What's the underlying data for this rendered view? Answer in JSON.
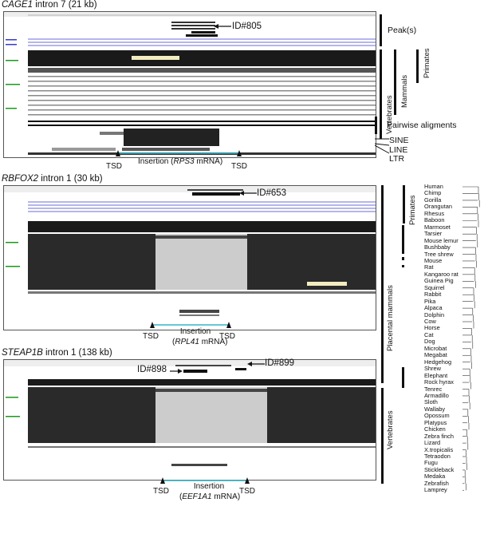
{
  "panels": [
    {
      "gene": "CAGE1",
      "suffix": "intron 7 (21 kb)",
      "id_label": "ID#805",
      "insertion_prefix": "Insertion (",
      "insertion_gene": "RPS3",
      "insertion_suffix": " mRNA)"
    },
    {
      "gene": "RBFOX2",
      "suffix": "intron 1 (30 kb)",
      "id_label": "ID#653",
      "insertion_prefix": "Insertion",
      "insertion_gene": "RPL41",
      "insertion_suffix": " mRNA)"
    },
    {
      "gene": "STEAP1B",
      "suffix": "intron 1 (138 kb)",
      "id_label": "ID#898",
      "id_label_2": "ID#899",
      "insertion_prefix": "Insertion",
      "insertion_gene": "EEF1A1",
      "insertion_suffix": " mRNA)"
    }
  ],
  "tsd_label": "TSD",
  "right_labels": {
    "peaks": "Peak(s)",
    "primates": "Primates",
    "mammals": "Mammals",
    "vertebrates": "Vertebrates",
    "pairwise": "Pairwise aligments",
    "sine": "SINE",
    "line": "LINE",
    "ltr": "LTR",
    "placental_mammals": "Placental mammals"
  },
  "species": [
    "Human",
    "Chimp",
    "Gorilla",
    "Orangutan",
    "Rhesus",
    "Baboon",
    "Marmoset",
    "Tarsier",
    "Mouse lemur",
    "Bushbaby",
    "Tree shrew",
    "Mouse",
    "Rat",
    "Kangaroo rat",
    "Guinea Pig",
    "Squirrel",
    "Rabbit",
    "Pika",
    "Alpaca",
    "Dolphin",
    "Cow",
    "Horse",
    "Cat",
    "Dog",
    "Microbat",
    "Megabat",
    "Hedgehog",
    "Shrew",
    "Elephant",
    "Rock hyrax",
    "Tenrec",
    "Armadillo",
    "Sloth",
    "Wallaby",
    "Opossum",
    "Platypus",
    "Chicken",
    "Zebra finch",
    "Lizard",
    "X.tropicalis",
    "Tetraodon",
    "Fugu",
    "Stickleback",
    "Medaka",
    "Zebrafish",
    "Lamprey"
  ],
  "colors": {
    "insertion_line": "#33b5c4",
    "track_blue": "#3a3ad0",
    "track_green": "#1a9a1a",
    "conservation": "#1a1a1a",
    "highlight": "#f3ecc0"
  }
}
